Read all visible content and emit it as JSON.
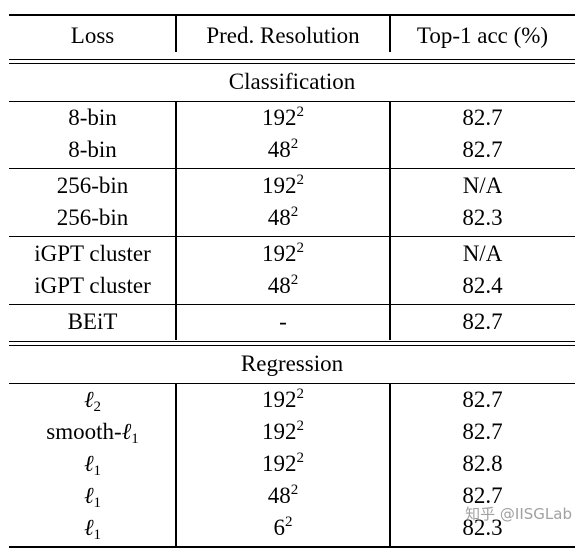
{
  "header": {
    "loss": "Loss",
    "resolution": "Pred. Resolution",
    "accuracy": "Top-1 acc (%)"
  },
  "sections": [
    {
      "title": "Classification",
      "groups": [
        [
          {
            "loss": "8-bin",
            "res_base": "192",
            "res_exp": "2",
            "acc": "82.7"
          },
          {
            "loss": "8-bin",
            "res_base": "48",
            "res_exp": "2",
            "acc": "82.7"
          }
        ],
        [
          {
            "loss": "256-bin",
            "res_base": "192",
            "res_exp": "2",
            "acc": "N/A"
          },
          {
            "loss": "256-bin",
            "res_base": "48",
            "res_exp": "2",
            "acc": "82.3"
          }
        ],
        [
          {
            "loss": "iGPT cluster",
            "res_base": "192",
            "res_exp": "2",
            "acc": "N/A"
          },
          {
            "loss": "iGPT cluster",
            "res_base": "48",
            "res_exp": "2",
            "acc": "82.4"
          }
        ],
        [
          {
            "loss": "BEiT",
            "res_base": "-",
            "res_exp": "",
            "acc": "82.7"
          }
        ]
      ]
    },
    {
      "title": "Regression",
      "groups": [
        [
          {
            "loss_prefix": "",
            "loss_sym": "ℓ",
            "loss_sub": "2",
            "res_base": "192",
            "res_exp": "2",
            "acc": "82.7"
          },
          {
            "loss_prefix": "smooth-",
            "loss_sym": "ℓ",
            "loss_sub": "1",
            "res_base": "192",
            "res_exp": "2",
            "acc": "82.7"
          },
          {
            "loss_prefix": "",
            "loss_sym": "ℓ",
            "loss_sub": "1",
            "res_base": "192",
            "res_exp": "2",
            "acc": "82.8"
          },
          {
            "loss_prefix": "",
            "loss_sym": "ℓ",
            "loss_sub": "1",
            "res_base": "48",
            "res_exp": "2",
            "acc": "82.7"
          },
          {
            "loss_prefix": "",
            "loss_sym": "ℓ",
            "loss_sub": "1",
            "res_base": "6",
            "res_exp": "2",
            "acc": "82.3"
          }
        ]
      ]
    }
  ],
  "watermark": "知乎 @IISGLab"
}
